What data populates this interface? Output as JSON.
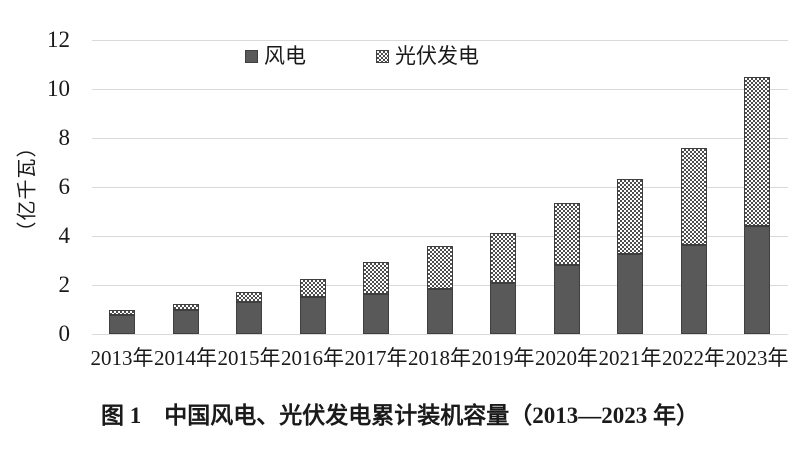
{
  "figure": {
    "caption": "图 1　中国风电、光伏发电累计装机容量（2013—2023 年）"
  },
  "chart_data": {
    "type": "bar",
    "stacked": true,
    "title": "图 1　中国风电、光伏发电累计装机容量（2013—2023 年）",
    "ylabel": "（亿千瓦）",
    "xlabel": "",
    "ylim": [
      0,
      12
    ],
    "yticks": [
      0,
      2,
      4,
      6,
      8,
      10,
      12
    ],
    "grid": true,
    "legend_position": "top",
    "categories": [
      "2013年",
      "2014年",
      "2015年",
      "2016年",
      "2017年",
      "2018年",
      "2019年",
      "2020年",
      "2021年",
      "2022年",
      "2023年"
    ],
    "series": [
      {
        "name": "风电",
        "style": "solid",
        "color": "#595959",
        "values": [
          0.77,
          0.96,
          1.29,
          1.49,
          1.64,
          1.84,
          2.1,
          2.81,
          3.28,
          3.65,
          4.41
        ]
      },
      {
        "name": "光伏发电",
        "style": "dotted-pattern",
        "color": "#4d4d4d",
        "values": [
          0.19,
          0.28,
          0.43,
          0.77,
          1.3,
          1.74,
          2.04,
          2.53,
          3.06,
          3.93,
          6.09
        ]
      }
    ]
  },
  "colors": {
    "bar_fill": "#595959",
    "bar_border": "#3f3f3f",
    "gridline": "#d9d9d9",
    "text": "#1a1a1a",
    "background": "#ffffff"
  }
}
